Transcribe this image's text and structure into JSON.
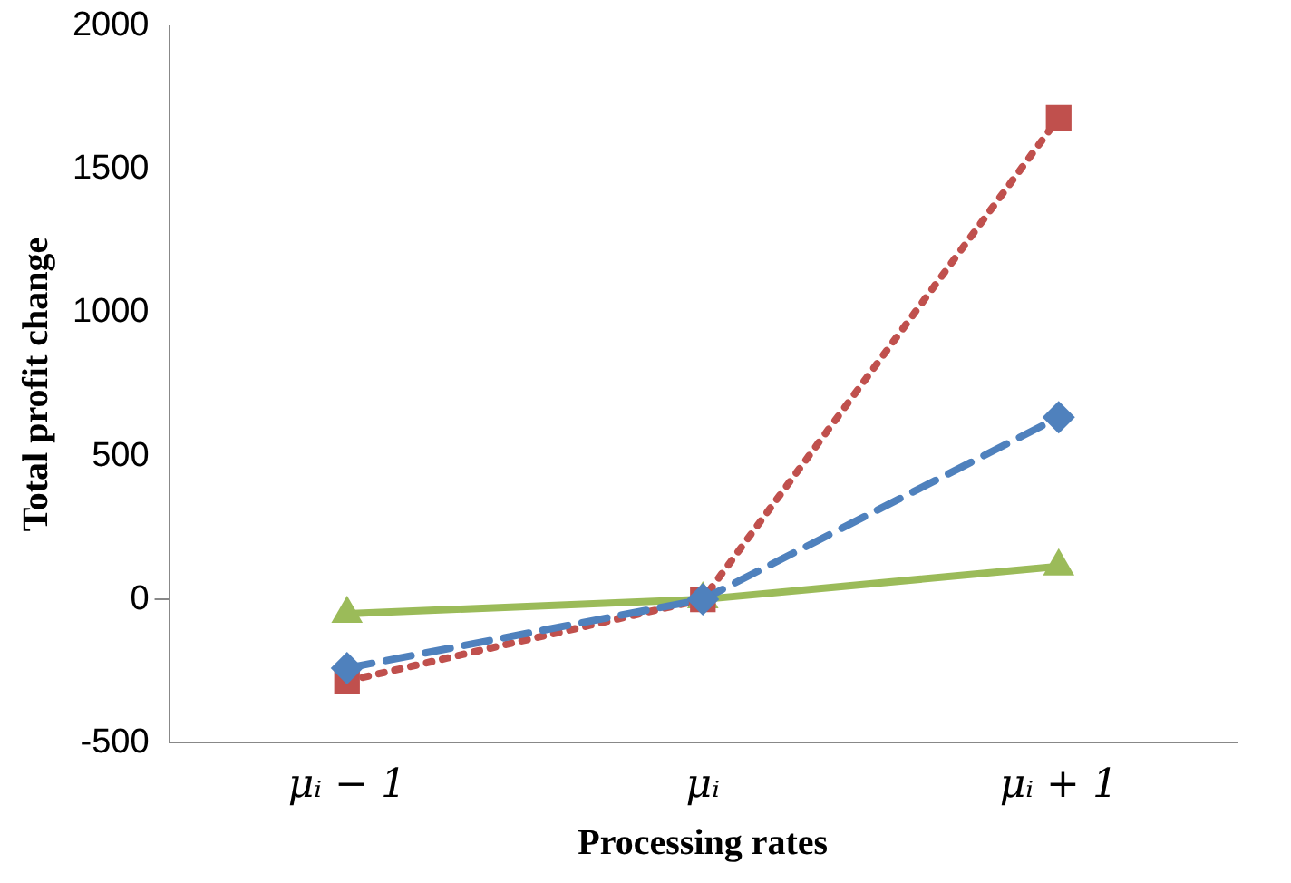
{
  "chart_data": {
    "type": "line",
    "xlabel": "Processing rates",
    "ylabel": "Total profit change",
    "categories": [
      "μᵢ − 1",
      "μᵢ",
      "μᵢ + 1"
    ],
    "series": [
      {
        "color": "#4f81bd",
        "values": [
          -240,
          0,
          635
        ],
        "marker": "diamond",
        "line_style": "dashed"
      },
      {
        "color": "#c0504d",
        "values": [
          -285,
          0,
          1680
        ],
        "marker": "square",
        "line_style": "dotted"
      },
      {
        "color": "#9bbb59",
        "values": [
          -50,
          0,
          115
        ],
        "marker": "triangle",
        "line_style": "solid"
      }
    ],
    "ylim": [
      -500,
      2000
    ],
    "yticks": [
      -500,
      0,
      500,
      1000,
      1500,
      2000
    ],
    "grid": false,
    "legend": false
  }
}
